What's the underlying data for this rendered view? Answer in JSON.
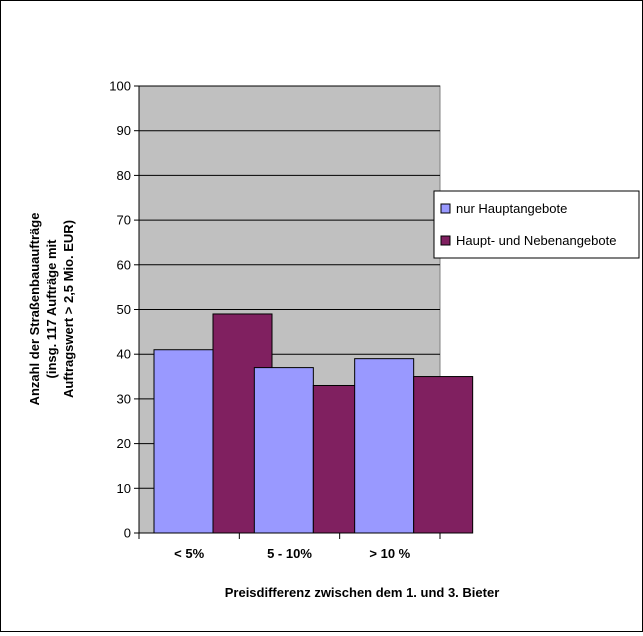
{
  "chart_data": {
    "type": "bar",
    "categories": [
      "< 5%",
      "5 - 10%",
      "> 10 %"
    ],
    "series": [
      {
        "name": "nur Hauptangebote",
        "values": [
          41,
          37,
          39
        ]
      },
      {
        "name": "Haupt- und Nebenangebote",
        "values": [
          49,
          33,
          35
        ]
      }
    ],
    "xlabel": "Preisdifferenz zwischen dem 1. und 3.  Bieter",
    "ylabel_lines": [
      "Anzahl der Straßenbauaufträge",
      "(insg. 117 Aufträge mit",
      "Auftragswert > 2,5 Mio. EUR)"
    ],
    "ylim": [
      0,
      100
    ],
    "yticks": [
      0,
      10,
      20,
      30,
      40,
      50,
      60,
      70,
      80,
      90,
      100
    ],
    "grid": true,
    "legend_position": "right",
    "colors": {
      "plot_background": "#c0c0c0",
      "series": [
        "#9999ff",
        "#802060"
      ],
      "gridline": "#000000"
    }
  }
}
